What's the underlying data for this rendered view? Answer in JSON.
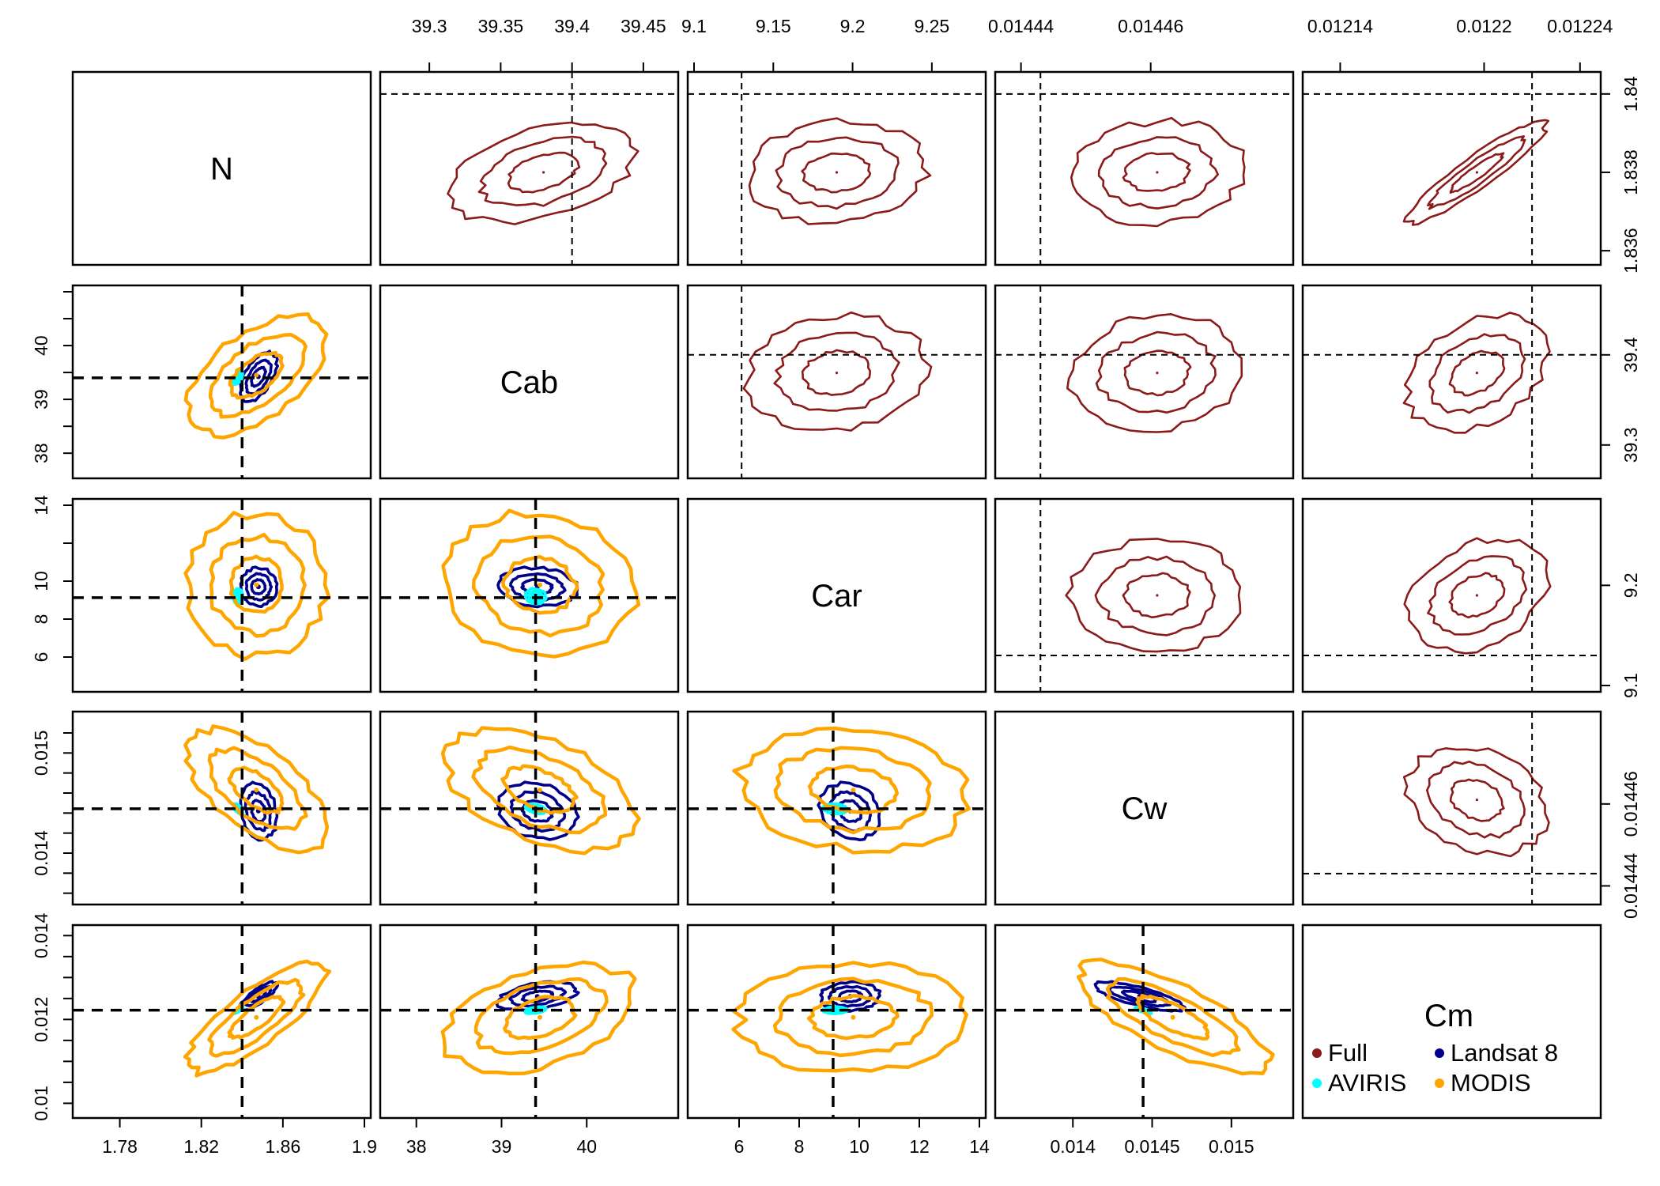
{
  "chart_data": {
    "type": "scatter",
    "variables": [
      "N",
      "Cab",
      "Car",
      "Cw",
      "Cm"
    ],
    "panel_grid": "5x5 pairs plot; lower triangle: posterior density contours for four sensor configurations; upper triangle: Full-spectrum contours zoomed; diagonal: variable names",
    "true_values": {
      "N": 1.84,
      "Cab": 39.4,
      "Car": 9.13,
      "Cw": 0.014443,
      "Cm": 0.01222
    },
    "lower_axes": {
      "N": {
        "range": [
          1.76,
          1.9
        ],
        "ticks": [
          "1.78",
          "1.82",
          "1.86",
          "1.9"
        ]
      },
      "Cab": {
        "range": [
          37.65,
          41.0
        ],
        "ticks": [
          "38",
          "39",
          "40"
        ]
      },
      "Car": {
        "range": [
          4.5,
          14.0
        ],
        "ticks": [
          "6",
          "8",
          "10",
          "12",
          "14"
        ]
      },
      "Cw": {
        "range": [
          0.01355,
          0.01535
        ],
        "ticks": [
          "0.014",
          "0.0145",
          "0.015"
        ]
      },
      "Cm": {
        "range": [
          0.0098,
          0.0141
        ],
        "ticks": [
          "0.01",
          "0.012",
          "0.014"
        ]
      }
    },
    "lower_axis_y_labels": {
      "Cab": [
        "38",
        "39",
        "40"
      ],
      "Car": [
        "6",
        "8",
        "10",
        "14"
      ],
      "Cw": [
        "0.014",
        "0.015"
      ],
      "Cm": [
        "0.01",
        "0.012",
        "0.014"
      ]
    },
    "upper_axes": {
      "N": {
        "range": [
          1.8358,
          1.8404
        ],
        "ticks": [
          "1.836",
          "1.838",
          "1.84"
        ]
      },
      "Cab": {
        "range": [
          39.27,
          39.47
        ],
        "ticks": [
          "39.3",
          "39.35",
          "39.4",
          "39.45"
        ]
      },
      "Car": {
        "range": [
          9.1,
          9.28
        ],
        "ticks": [
          "9.1",
          "9.15",
          "9.2",
          "9.25"
        ]
      },
      "Cw": {
        "range": [
          0.014437,
          0.014481
        ],
        "ticks": [
          "0.01444",
          "0.01446"
        ]
      },
      "Cm": {
        "range": [
          0.012127,
          0.012246
        ],
        "ticks": [
          "0.01214",
          "0.0122",
          "0.01224"
        ]
      }
    },
    "upper_axis_top_labels": {
      "Cab": [
        "39.3",
        "39.35",
        "39.4",
        "39.45"
      ],
      "Car": [
        "9.1",
        "9.15",
        "9.2",
        "9.25"
      ],
      "Cw": [
        "0.01444",
        "0.01446"
      ],
      "Cm": [
        "0.01214",
        "0.0122",
        "0.01224"
      ]
    },
    "upper_axis_right_labels": {
      "N": [
        "1.836",
        "1.838",
        "1.84"
      ],
      "Cab": [
        "39.3",
        "39.4"
      ],
      "Car": [
        "9.1",
        "9.2"
      ],
      "Cw": [
        "0.01444",
        "0.01446"
      ]
    },
    "series": [
      {
        "name": "Full",
        "color": "#8b1a1a",
        "panel": "upper",
        "centers": {
          "N": 1.838,
          "Cab": 39.38,
          "Car": 9.19,
          "Cw": 0.014461,
          "Cm": 0.012197
        },
        "sd": {
          "N": 0.00065,
          "Cab": 0.032,
          "Car": 0.028,
          "Cw": 6.6e-06,
          "Cm": 1.45e-05
        }
      },
      {
        "name": "Landsat 8",
        "color": "#00008b",
        "panel": "lower",
        "centers": {
          "N": 1.848,
          "Cab": 39.42,
          "Car": 9.7,
          "Cw": 0.01442,
          "Cm": 0.01255
        },
        "sd": {
          "N": 0.0045,
          "Cab": 0.23,
          "Car": 0.5,
          "Cw": 0.00014,
          "Cm": 0.00017
        }
      },
      {
        "name": "AVIRIS",
        "color": "#00ffff",
        "panel": "lower",
        "centers": {
          "N": 1.838,
          "Cab": 39.4,
          "Car": 9.2,
          "Cw": 0.014443,
          "Cm": 0.01222
        },
        "sd": {
          "N": 0.0012,
          "Cab": 0.06,
          "Car": 0.2,
          "Cw": 2.5e-05,
          "Cm": 4e-05
        }
      },
      {
        "name": "MODIS",
        "color": "#ffa500",
        "panel": "lower",
        "centers": {
          "N": 1.847,
          "Cab": 39.45,
          "Car": 9.8,
          "Cw": 0.01463,
          "Cm": 0.01205
        },
        "sd": {
          "N": 0.017,
          "Cab": 0.55,
          "Car": 1.9,
          "Cw": 0.0003,
          "Cm": 0.00065
        }
      }
    ],
    "legend": {
      "position": "bottom-right panel",
      "entries": [
        "Full",
        "Landsat 8",
        "AVIRIS",
        "MODIS"
      ]
    },
    "grid": false
  }
}
